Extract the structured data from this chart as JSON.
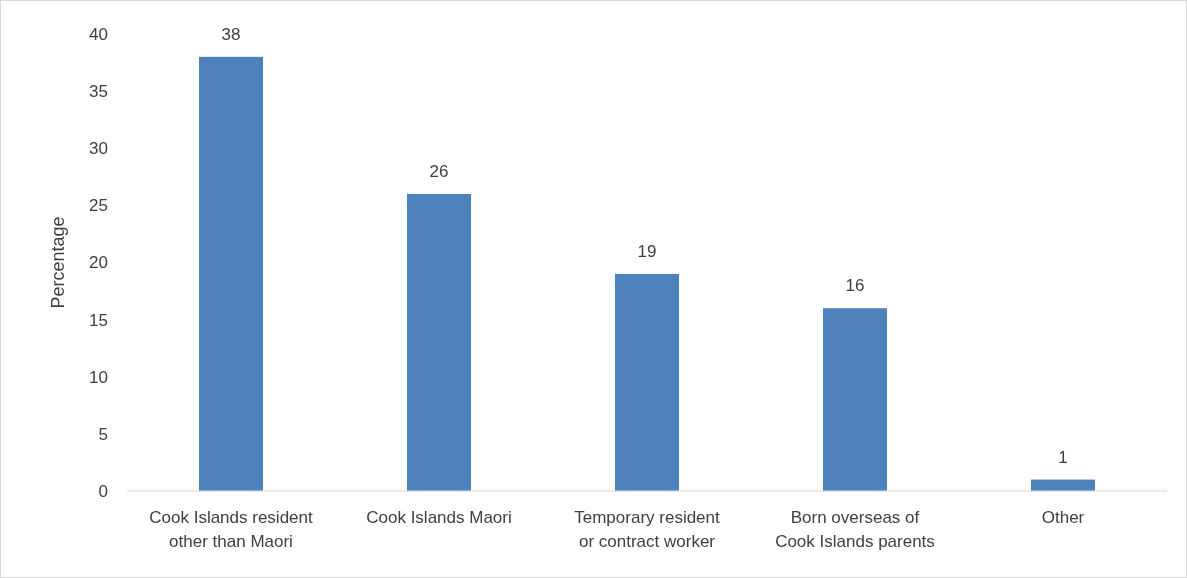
{
  "chart_data": {
    "type": "bar",
    "ylabel": "Percentage",
    "categories": [
      "Cook Islands resident\nother than Maori",
      "Cook Islands Maori",
      "Temporary resident\nor contract worker",
      "Born overseas of\nCook Islands parents",
      "Other"
    ],
    "values": [
      38,
      26,
      19,
      16,
      1
    ],
    "color": "#4f81bd",
    "ylim": [
      0,
      40
    ],
    "yticks": [
      0,
      5,
      10,
      15,
      20,
      25,
      30,
      35,
      40
    ],
    "grid": false,
    "data_labels": true
  }
}
